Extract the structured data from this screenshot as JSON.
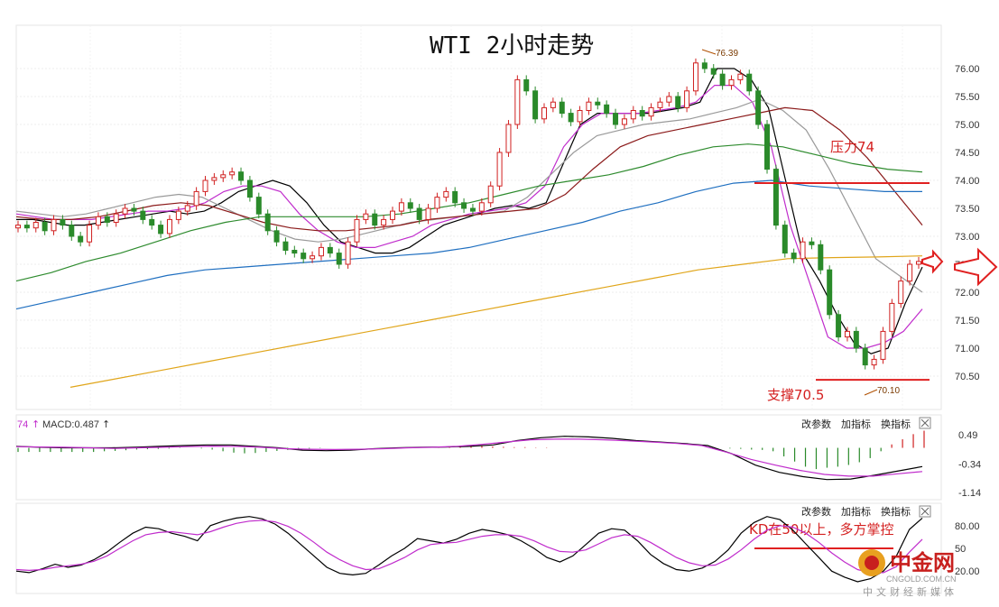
{
  "chart_data": [
    {
      "type": "candlestick",
      "title": "WTI 2小时走势",
      "y_ticks": [
        "76.00",
        "75.50",
        "75.00",
        "74.50",
        "74.00",
        "73.50",
        "73.00",
        "72.50",
        "72.00",
        "71.50",
        "71.00",
        "70.50"
      ],
      "ylim": [
        70.2,
        76.4
      ],
      "grid": true,
      "high_label": "76.39",
      "low_label": "70.10",
      "resistance": {
        "value": 74.0,
        "label": "压力74"
      },
      "support": {
        "value": 70.45,
        "label": "支撑70.5"
      },
      "candles_close": [
        73.2,
        73.15,
        73.25,
        73.1,
        73.3,
        73.2,
        73.0,
        72.9,
        73.2,
        73.35,
        73.25,
        73.4,
        73.5,
        73.45,
        73.3,
        73.2,
        73.05,
        73.3,
        73.45,
        73.55,
        73.8,
        74.0,
        74.05,
        74.1,
        74.15,
        74.0,
        73.7,
        73.4,
        73.1,
        72.9,
        72.75,
        72.7,
        72.6,
        72.65,
        72.8,
        72.7,
        72.5,
        72.9,
        73.3,
        73.4,
        73.2,
        73.3,
        73.45,
        73.6,
        73.5,
        73.3,
        73.5,
        73.7,
        73.8,
        73.6,
        73.5,
        73.45,
        73.6,
        73.9,
        74.5,
        75.0,
        75.8,
        75.6,
        75.1,
        75.3,
        75.4,
        75.2,
        75.05,
        75.25,
        75.4,
        75.35,
        75.2,
        75.0,
        75.1,
        75.25,
        75.15,
        75.3,
        75.4,
        75.5,
        75.3,
        75.6,
        76.1,
        76.0,
        75.9,
        75.7,
        75.8,
        75.9,
        75.6,
        75.0,
        74.2,
        73.2,
        72.7,
        72.6,
        72.9,
        72.85,
        72.4,
        71.6,
        71.2,
        71.3,
        71.0,
        70.7,
        70.8,
        71.3,
        71.8,
        72.2,
        72.5,
        72.55
      ],
      "ma_series": [
        {
          "color": "#000000",
          "values": [
            73.3,
            73.3,
            73.25,
            73.2,
            73.2,
            73.25,
            73.3,
            73.35,
            73.4,
            73.45,
            73.4,
            73.45,
            73.6,
            73.8,
            73.9,
            74.0,
            73.9,
            73.6,
            73.2,
            72.9,
            72.8,
            72.7,
            72.7,
            72.8,
            73.0,
            73.2,
            73.3,
            73.4,
            73.5,
            73.55,
            73.5,
            73.6,
            74.3,
            75.0,
            75.2,
            75.2,
            75.2,
            75.2,
            75.25,
            75.3,
            75.4,
            76.0,
            76.0,
            75.8,
            75.3,
            74.0,
            72.7,
            72.2,
            71.6,
            71.1,
            70.9,
            71.0,
            71.8,
            72.45
          ]
        },
        {
          "color": "#c02ccc",
          "values": [
            73.4,
            73.35,
            73.3,
            73.3,
            73.3,
            73.35,
            73.4,
            73.45,
            73.45,
            73.5,
            73.6,
            73.8,
            73.9,
            73.9,
            73.8,
            73.4,
            73.1,
            72.9,
            72.8,
            72.8,
            72.9,
            73.0,
            73.2,
            73.3,
            73.4,
            73.45,
            73.5,
            73.6,
            73.9,
            74.6,
            75.0,
            75.2,
            75.2,
            75.2,
            75.25,
            75.3,
            75.4,
            75.7,
            75.7,
            75.4,
            74.6,
            73.2,
            72.2,
            71.2,
            71.0,
            71.0,
            71.1,
            71.3,
            71.7
          ]
        },
        {
          "color": "#9a9a9a",
          "values": [
            73.45,
            73.4,
            73.35,
            73.4,
            73.5,
            73.6,
            73.7,
            73.75,
            73.7,
            73.5,
            73.3,
            73.1,
            72.95,
            72.9,
            72.95,
            73.05,
            73.15,
            73.25,
            73.3,
            73.35,
            73.4,
            73.45,
            73.7,
            74.1,
            74.5,
            74.8,
            74.9,
            75.0,
            75.05,
            75.1,
            75.2,
            75.3,
            75.45,
            75.25,
            74.9,
            74.2,
            73.4,
            72.6,
            72.3,
            72.0
          ]
        },
        {
          "color": "#8b1a1a",
          "values": [
            73.35,
            73.3,
            73.3,
            73.35,
            73.45,
            73.55,
            73.6,
            73.55,
            73.4,
            73.25,
            73.15,
            73.1,
            73.1,
            73.15,
            73.2,
            73.3,
            73.35,
            73.4,
            73.45,
            73.5,
            73.75,
            74.2,
            74.6,
            74.8,
            74.9,
            75.0,
            75.1,
            75.2,
            75.3,
            75.25,
            74.9,
            74.4,
            73.8,
            73.2
          ]
        },
        {
          "color": "#2e8b2e",
          "values": [
            72.2,
            72.35,
            72.55,
            72.7,
            72.9,
            73.1,
            73.25,
            73.35,
            73.35,
            73.35,
            73.35,
            73.4,
            73.5,
            73.6,
            73.75,
            73.9,
            74.0,
            74.1,
            74.25,
            74.45,
            74.6,
            74.65,
            74.6,
            74.45,
            74.3,
            74.2,
            74.15
          ]
        },
        {
          "color": "#1f6fc0",
          "values": [
            71.7,
            71.85,
            72.0,
            72.15,
            72.3,
            72.4,
            72.45,
            72.5,
            72.55,
            72.6,
            72.65,
            72.7,
            72.8,
            72.95,
            73.1,
            73.25,
            73.45,
            73.6,
            73.8,
            73.95,
            74.0,
            73.9,
            73.85,
            73.8,
            73.8
          ]
        },
        {
          "color": "#e0a51a",
          "values": [
            70.3,
            70.45,
            70.6,
            70.75,
            70.9,
            71.05,
            71.2,
            71.35,
            71.5,
            71.65,
            71.8,
            71.95,
            72.1,
            72.25,
            72.4,
            72.5,
            72.6,
            72.62,
            72.63,
            72.65
          ]
        }
      ]
    },
    {
      "type": "macd",
      "label": "MACD:0.487",
      "label_prefix": "74",
      "y_ticks": [
        "0.49",
        "-0.34",
        "-1.14"
      ],
      "ylim": [
        -1.25,
        0.75
      ],
      "tools": [
        "改参数",
        "加指标",
        "换指标"
      ],
      "histogram": [
        -0.12,
        -0.12,
        -0.12,
        -0.12,
        -0.12,
        -0.12,
        -0.12,
        -0.12,
        -0.1,
        -0.09,
        -0.07,
        -0.05,
        -0.04,
        -0.03,
        -0.02,
        -0.01,
        0.0,
        -0.02,
        -0.05,
        -0.1,
        -0.14,
        -0.16,
        -0.15,
        -0.12,
        -0.09,
        -0.06,
        -0.03,
        -0.02,
        -0.01,
        0.0,
        0.0,
        0.0,
        0.0,
        0.0,
        0.0,
        0.0,
        0.0,
        0.0,
        0.0,
        0.02,
        0.04,
        0.05,
        0.06,
        0.05,
        0.04,
        0.03,
        0.02,
        0.02,
        0.01,
        0.01,
        0.0,
        0.0,
        0.0,
        0.0,
        0.0,
        0.0,
        0.0,
        0.0,
        0.0,
        0.0,
        0.0,
        0.0,
        0.0,
        0.0,
        0.0,
        0.0,
        -0.02,
        -0.03,
        -0.05,
        -0.06,
        -0.1,
        -0.25,
        -0.4,
        -0.55,
        -0.62,
        -0.58,
        -0.55,
        -0.5,
        -0.42,
        -0.3,
        -0.1,
        0.1,
        0.25,
        0.4,
        0.5
      ],
      "dif": [
        0.05,
        0.02,
        0.0,
        0.0,
        0.0,
        0.02,
        0.05,
        0.08,
        0.1,
        0.1,
        0.05,
        0.0,
        -0.08,
        -0.1,
        -0.08,
        -0.03,
        0.0,
        0.02,
        0.03,
        0.05,
        0.1,
        0.25,
        0.35,
        0.4,
        0.38,
        0.33,
        0.25,
        0.2,
        0.15,
        0.08,
        -0.2,
        -0.6,
        -0.85,
        -1.0,
        -1.1,
        -1.08,
        -0.95,
        -0.8,
        -0.65
      ],
      "dea": [
        0.04,
        0.03,
        0.02,
        0.0,
        -0.02,
        0.0,
        0.02,
        0.04,
        0.06,
        0.05,
        0.02,
        -0.03,
        -0.05,
        -0.06,
        -0.05,
        -0.03,
        0.0,
        0.02,
        0.05,
        0.12,
        0.2,
        0.28,
        0.3,
        0.3,
        0.28,
        0.24,
        0.2,
        0.15,
        0.08,
        -0.15,
        -0.4,
        -0.6,
        -0.78,
        -0.92,
        -0.98,
        -0.98,
        -0.9,
        -0.82
      ]
    },
    {
      "type": "kd",
      "y_ticks": [
        "80.00",
        "20.00"
      ],
      "tick_50": "50",
      "ylim": [
        0,
        100
      ],
      "tools": [
        "改参数",
        "加指标",
        "换指标"
      ],
      "annotation": "KD在50以上，多方掌控",
      "k": [
        20,
        18,
        23,
        29,
        25,
        28,
        35,
        45,
        58,
        70,
        78,
        76,
        70,
        66,
        60,
        80,
        86,
        90,
        92,
        89,
        82,
        70,
        55,
        40,
        25,
        17,
        15,
        17,
        28,
        40,
        50,
        63,
        60,
        57,
        62,
        70,
        75,
        72,
        68,
        60,
        50,
        38,
        32,
        40,
        55,
        70,
        76,
        74,
        60,
        42,
        30,
        22,
        20,
        24,
        33,
        48,
        70,
        84,
        92,
        88,
        74,
        56,
        38,
        20,
        12,
        6,
        10,
        20,
        40,
        75,
        90
      ],
      "d": [
        22,
        21,
        22,
        25,
        27,
        29,
        33,
        40,
        50,
        60,
        68,
        71,
        72,
        70,
        68,
        72,
        78,
        83,
        86,
        87,
        85,
        79,
        70,
        58,
        45,
        35,
        27,
        22,
        23,
        30,
        38,
        48,
        55,
        57,
        58,
        62,
        66,
        68,
        68,
        66,
        60,
        52,
        46,
        45,
        48,
        56,
        64,
        68,
        66,
        58,
        48,
        38,
        31,
        27,
        28,
        36,
        48,
        62,
        74,
        80,
        78,
        70,
        58,
        44,
        32,
        22,
        18,
        18,
        26,
        45,
        62
      ]
    }
  ],
  "logo": {
    "main": "中金网",
    "url_text": "CNGOLD.COM.CN",
    "cn_text": "中文财经新媒体"
  }
}
